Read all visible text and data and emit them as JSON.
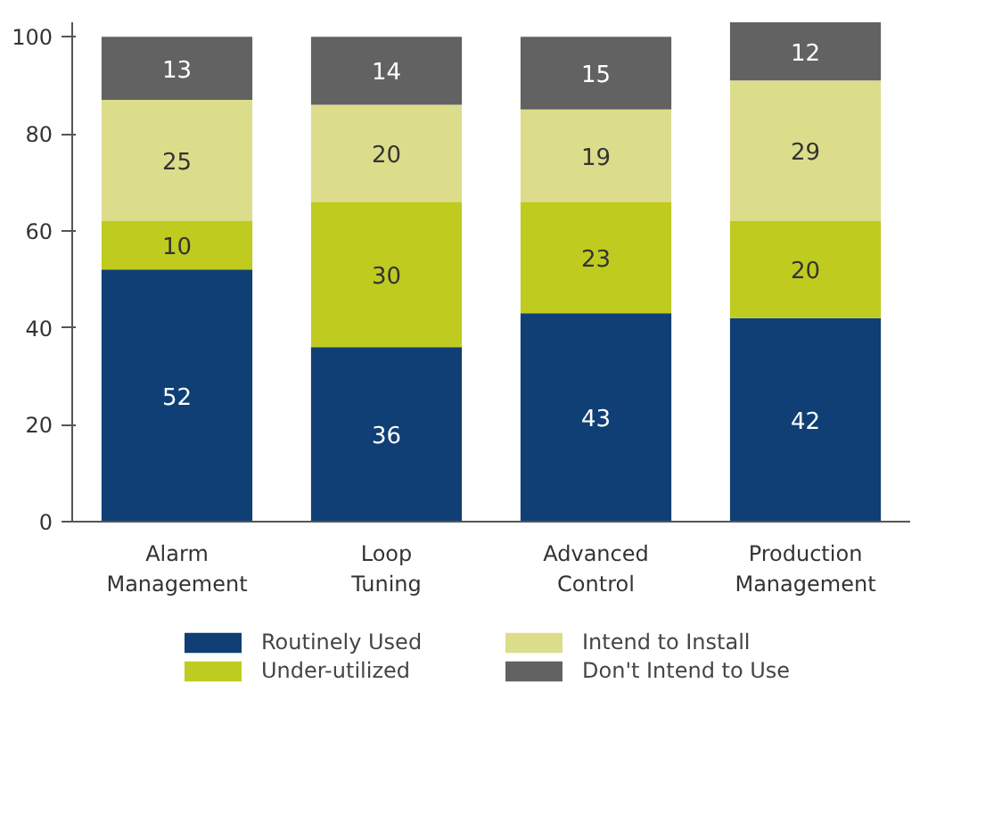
{
  "chart_data": {
    "type": "bar",
    "stacked": true,
    "categories": [
      "Alarm Management",
      "Loop Tuning",
      "Advanced Control",
      "Production Management"
    ],
    "series": [
      {
        "name": "Routinely Used",
        "color": "#0f3f74",
        "values": [
          52,
          36,
          43,
          42
        ]
      },
      {
        "name": "Under-utilized",
        "color": "#bfcb1f",
        "values": [
          10,
          30,
          23,
          20
        ]
      },
      {
        "name": "Intend to Install",
        "color": "#dcdd8b",
        "values": [
          25,
          20,
          19,
          29
        ]
      },
      {
        "name": "Don't Intend to Use",
        "color": "#626262",
        "values": [
          13,
          14,
          15,
          12
        ]
      }
    ],
    "ylim": [
      0,
      103
    ],
    "yticks": [
      0,
      20,
      40,
      60,
      80,
      100
    ],
    "grid": false,
    "legend": "bottom",
    "data_labels": true
  }
}
